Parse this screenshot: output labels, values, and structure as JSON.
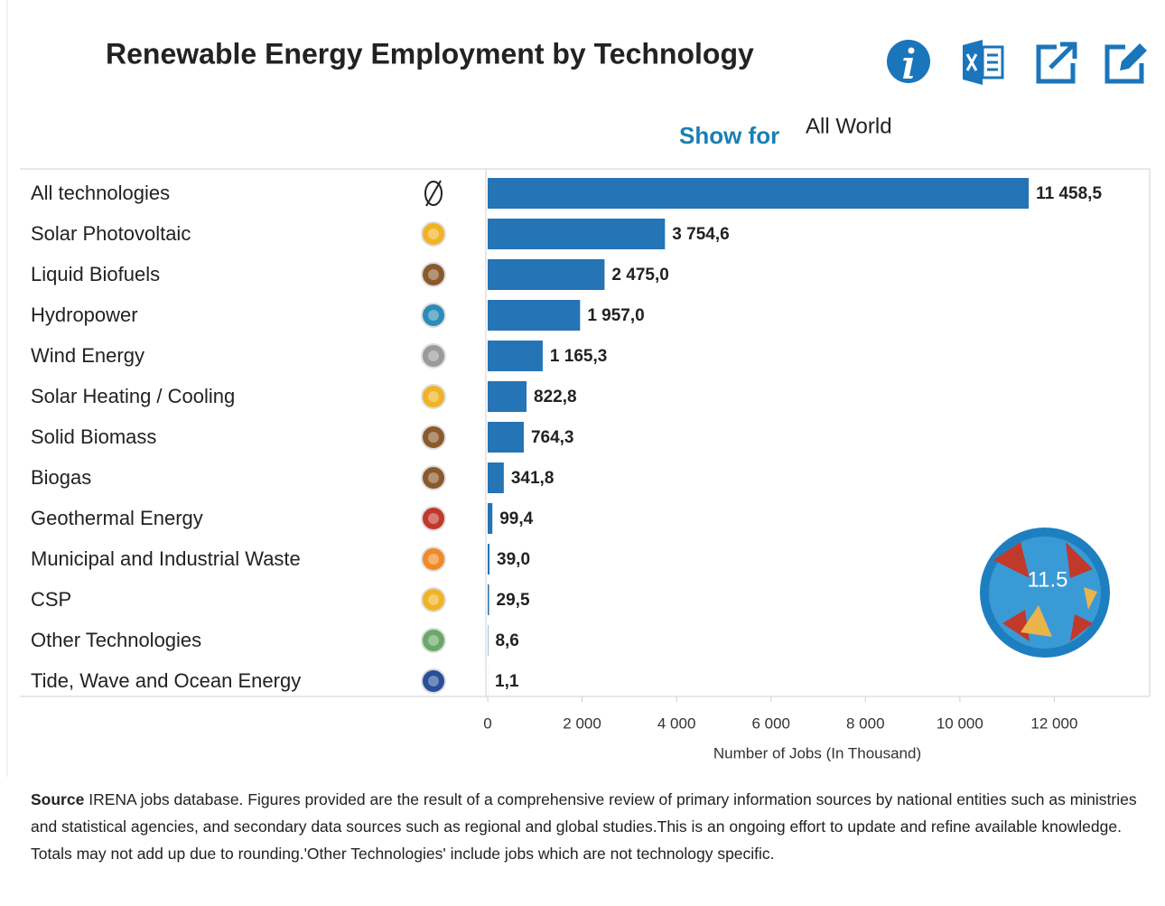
{
  "chart_data": {
    "type": "barh",
    "title": "Renewable Energy Employment by Technology",
    "filter_label": "Show for",
    "filter_value": "All World",
    "categories": [
      "All technologies",
      "Solar Photovoltaic",
      "Liquid Biofuels",
      "Hydropower",
      "Wind Energy",
      "Solar Heating / Cooling",
      "Solid Biomass",
      "Biogas",
      "Geothermal Energy",
      "Municipal and Industrial Waste",
      "CSP",
      "Other Technologies",
      "Tide, Wave and Ocean Energy"
    ],
    "values": [
      11458.5,
      3754.6,
      2475.0,
      1957.0,
      1165.3,
      822.8,
      764.3,
      341.8,
      99.4,
      39.0,
      29.5,
      8.6,
      1.1
    ],
    "value_labels": [
      "11 458,5",
      "3 754,6",
      "2 475,0",
      "1 957,0",
      "1 165,3",
      "822,8",
      "764,3",
      "341,8",
      "99,4",
      "39,0",
      "29,5",
      "8,6",
      "1,1"
    ],
    "color": "#2574b5",
    "xlim": [
      0,
      14000
    ],
    "xticks": [
      0,
      {
        "value": 2000,
        "label": "2 000"
      },
      {
        "value": 4000,
        "label": "4 000"
      },
      {
        "value": 6000,
        "label": "6 000"
      },
      {
        "value": 8000,
        "label": "8 000"
      },
      {
        "value": 10000,
        "label": "10 000"
      },
      {
        "value": 12000,
        "label": "12 000"
      }
    ],
    "xlabel": "Number of Jobs (In Thousand)",
    "badge_text": "11.5",
    "source_label": "Source",
    "source_text": "IRENA jobs database. Figures provided are the result of a comprehensive review of primary information sources by national entities such as ministries and statistical agencies, and secondary data sources such as regional and global studies.This is an ongoing effort to update and refine available knowledge. Totals may not add up due to rounding.'Other Technologies' include jobs which are not technology specific."
  }
}
